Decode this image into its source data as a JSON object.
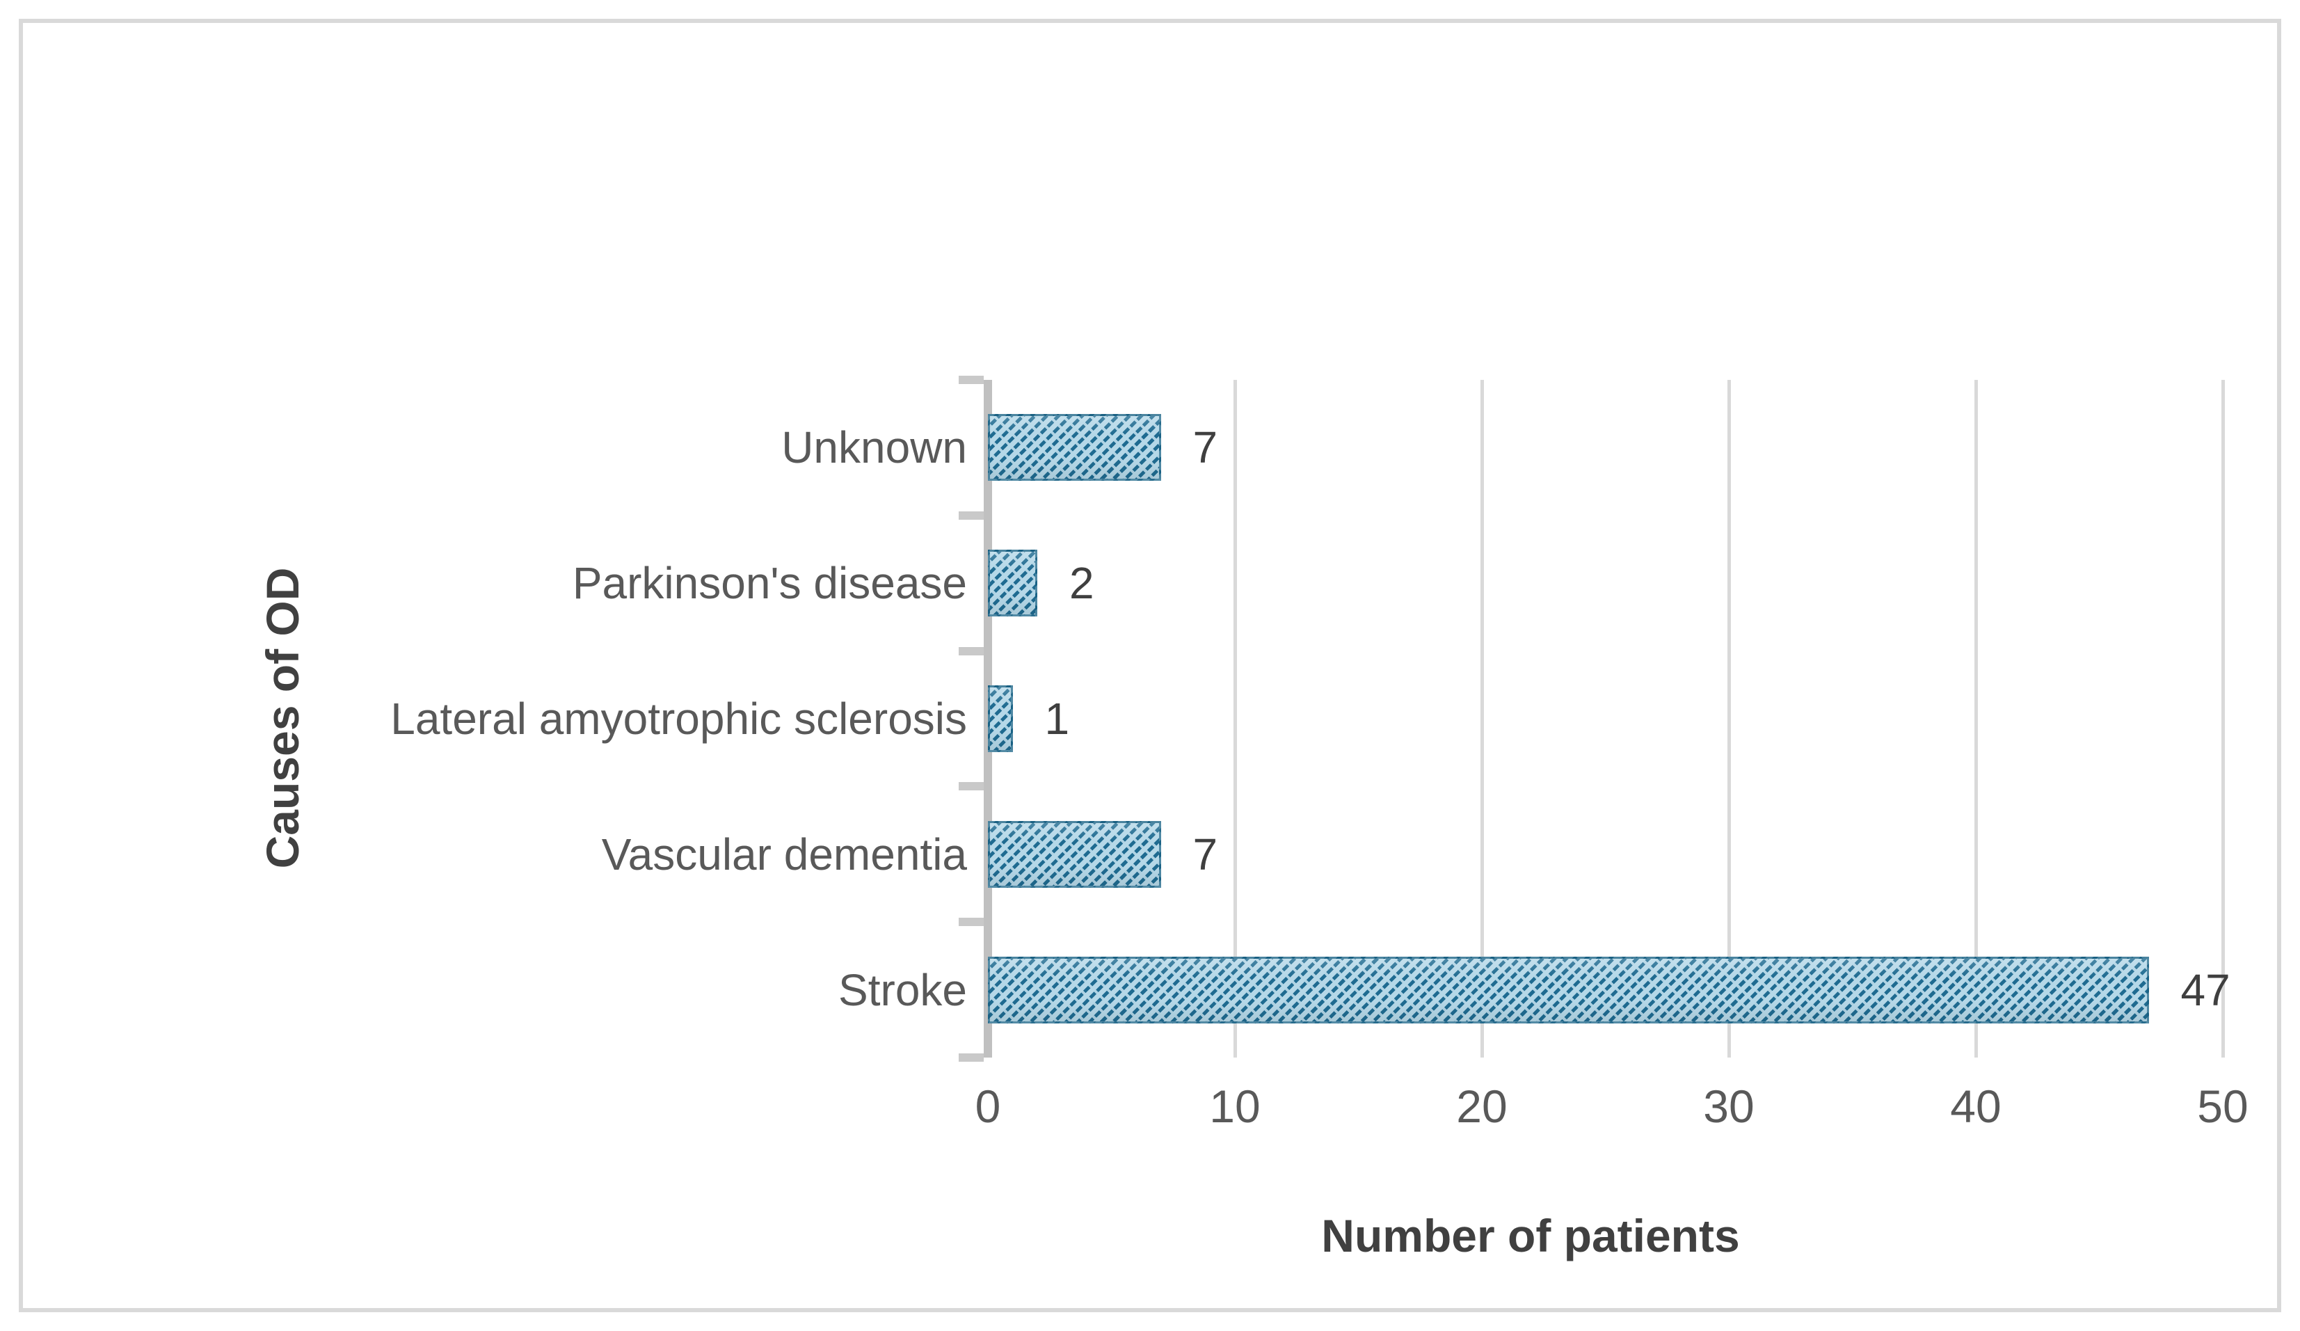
{
  "figure": {
    "background_color": "#ffffff",
    "frame_border_color": "#d9d9d9"
  },
  "chart_data": {
    "type": "bar",
    "orientation": "horizontal",
    "title": "",
    "categories": [
      "Unknown",
      "Parkinson's disease",
      "Lateral amyotrophic sclerosis",
      "Vascular dementia",
      "Stroke"
    ],
    "values": [
      7,
      2,
      1,
      7,
      47
    ],
    "data_labels": [
      "7",
      "2",
      "1",
      "7",
      "47"
    ],
    "xlabel": "Number of patients",
    "ylabel": "Causes of OD",
    "xlim": [
      0,
      50
    ],
    "xticks": [
      0,
      10,
      20,
      30,
      40,
      50
    ],
    "grid": "vertical-gridlines-on",
    "legend": "none",
    "bar_style": {
      "pattern": "diagonal-dash-hatch",
      "fill_color": "#b5d8e8",
      "stripe_color": "#1f6b91"
    },
    "colors": {
      "gridline": "#d9d9d9",
      "axis_line": "#c0c0c0",
      "tick_label": "#595959",
      "category_label": "#595959",
      "value_label": "#3f3f3f",
      "axis_title": "#404040"
    }
  }
}
